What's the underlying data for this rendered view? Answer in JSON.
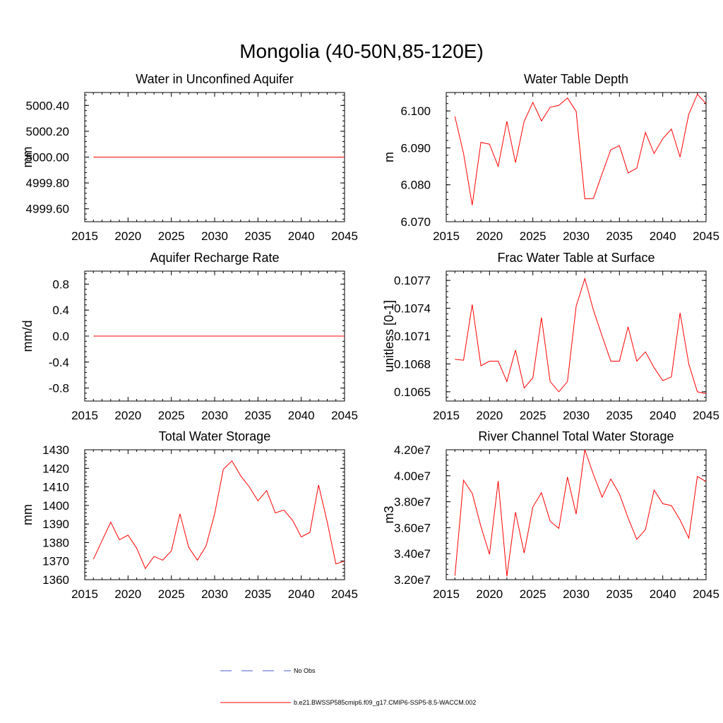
{
  "figure": {
    "title": "Mongolia (40-50N,85-120E)"
  },
  "legend": {
    "items": [
      {
        "label": "No Obs",
        "color": "#4a5bd1",
        "style": "dashed"
      },
      {
        "label": "b.e21.BWSSP585cmip6.f09_g17.CMIP6-SSP5-8.5-WACCM.002",
        "color": "#ff0000",
        "style": "solid"
      }
    ]
  },
  "chart_data": [
    {
      "type": "line",
      "title": "Water in Unconfined Aquifer",
      "ylabel": "mm",
      "xlim": [
        2015,
        2045
      ],
      "ylim": [
        4999.5,
        5000.5
      ],
      "xticks": [
        "2015",
        "2020",
        "2025",
        "2030",
        "2035",
        "2040",
        "2045"
      ],
      "yticks": [
        "4999.60",
        "4999.80",
        "5000.00",
        "5000.20",
        "5000.40"
      ],
      "series": [
        {
          "x": [
            2016,
            2045
          ],
          "values": [
            5000.0,
            5000.0
          ]
        }
      ]
    },
    {
      "type": "line",
      "title": "Water Table Depth",
      "ylabel": "m",
      "xlim": [
        2015,
        2045
      ],
      "ylim": [
        6.07,
        6.105
      ],
      "xticks": [
        "2015",
        "2020",
        "2025",
        "2030",
        "2035",
        "2040",
        "2045"
      ],
      "yticks": [
        "6.070",
        "6.080",
        "6.090",
        "6.100"
      ],
      "series": [
        {
          "x": [
            2016,
            2017,
            2018,
            2019,
            2020,
            2021,
            2022,
            2023,
            2024,
            2025,
            2026,
            2027,
            2028,
            2029,
            2030,
            2031,
            2032,
            2033,
            2034,
            2035,
            2036,
            2037,
            2038,
            2039,
            2040,
            2041,
            2042,
            2043,
            2044,
            2045
          ],
          "values": [
            6.0985,
            6.0885,
            6.0745,
            6.0915,
            6.091,
            6.085,
            6.0972,
            6.086,
            6.0972,
            6.1023,
            6.0973,
            6.101,
            6.1015,
            6.1035,
            6.0999,
            6.0762,
            6.0763,
            6.083,
            6.0895,
            6.0906,
            6.0832,
            6.0845,
            6.0942,
            6.0885,
            6.0925,
            6.0951,
            6.0875,
            6.0991,
            6.1045,
            6.102
          ]
        }
      ]
    },
    {
      "type": "line",
      "title": "Aquifer Recharge Rate",
      "ylabel": "mm/d",
      "xlim": [
        2015,
        2045
      ],
      "ylim": [
        -1.0,
        1.0
      ],
      "xticks": [
        "2015",
        "2020",
        "2025",
        "2030",
        "2035",
        "2040",
        "2045"
      ],
      "yticks": [
        "-0.8",
        "-0.4",
        "0.0",
        "0.4",
        "0.8"
      ],
      "series": [
        {
          "x": [
            2016,
            2045
          ],
          "values": [
            0.0,
            0.0
          ]
        }
      ]
    },
    {
      "type": "line",
      "title": "Frac Water Table at Surface",
      "ylabel": "unitless [0-1]",
      "xlim": [
        2015,
        2045
      ],
      "ylim": [
        0.1064,
        0.1078
      ],
      "xticks": [
        "2015",
        "2020",
        "2025",
        "2030",
        "2035",
        "2040",
        "2045"
      ],
      "yticks": [
        "0.1065",
        "0.1068",
        "0.1071",
        "0.1074",
        "0.1077"
      ],
      "series": [
        {
          "x": [
            2016,
            2017,
            2018,
            2019,
            2020,
            2021,
            2022,
            2023,
            2024,
            2025,
            2026,
            2027,
            2028,
            2029,
            2030,
            2031,
            2032,
            2033,
            2034,
            2035,
            2036,
            2037,
            2038,
            2039,
            2040,
            2041,
            2042,
            2043,
            2044,
            2045
          ],
          "values": [
            0.10685,
            0.10684,
            0.10744,
            0.10678,
            0.10683,
            0.10683,
            0.10661,
            0.10695,
            0.10654,
            0.10665,
            0.1073,
            0.10661,
            0.1065,
            0.10661,
            0.10742,
            0.10772,
            0.10738,
            0.1071,
            0.10683,
            0.10683,
            0.1072,
            0.10683,
            0.10693,
            0.10676,
            0.10662,
            0.10666,
            0.10735,
            0.1068,
            0.1065,
            0.10648
          ]
        }
      ]
    },
    {
      "type": "line",
      "title": "Total Water Storage",
      "ylabel": "mm",
      "xlim": [
        2015,
        2045
      ],
      "ylim": [
        1360,
        1430
      ],
      "xticks": [
        "2015",
        "2020",
        "2025",
        "2030",
        "2035",
        "2040",
        "2045"
      ],
      "yticks": [
        "1360",
        "1370",
        "1380",
        "1390",
        "1400",
        "1410",
        "1420",
        "1430"
      ],
      "series": [
        {
          "x": [
            2016,
            2017,
            2018,
            2019,
            2020,
            2021,
            2022,
            2023,
            2024,
            2025,
            2026,
            2027,
            2028,
            2029,
            2030,
            2031,
            2032,
            2033,
            2034,
            2035,
            2036,
            2037,
            2038,
            2039,
            2040,
            2041,
            2042,
            2043,
            2044,
            2045
          ],
          "values": [
            1371,
            1381,
            1391,
            1381.5,
            1384,
            1377,
            1366,
            1372.5,
            1370.5,
            1375.5,
            1395.5,
            1377.5,
            1370.5,
            1378,
            1395.5,
            1419.5,
            1424,
            1416,
            1410,
            1402.5,
            1408,
            1396,
            1397.5,
            1392,
            1383,
            1385.5,
            1411,
            1391,
            1368.5,
            1370
          ]
        }
      ]
    },
    {
      "type": "line",
      "title": "River Channel Total Water Storage",
      "ylabel": "m3",
      "xlim": [
        2015,
        2045
      ],
      "ylim": [
        32000000,
        42000000
      ],
      "xticks": [
        "2015",
        "2020",
        "2025",
        "2030",
        "2035",
        "2040",
        "2045"
      ],
      "yticks": [
        "3.20e7",
        "3.40e7",
        "3.60e7",
        "3.80e7",
        "4.00e7",
        "4.20e7"
      ],
      "series": [
        {
          "x": [
            2016,
            2017,
            2018,
            2019,
            2020,
            2021,
            2022,
            2023,
            2024,
            2025,
            2026,
            2027,
            2028,
            2029,
            2030,
            2031,
            2032,
            2033,
            2034,
            2035,
            2036,
            2037,
            2038,
            2039,
            2040,
            2041,
            2042,
            2043,
            2044,
            2045
          ],
          "values": [
            32300000,
            39650000,
            38650000,
            36100000,
            33950000,
            39600000,
            32250000,
            37200000,
            34050000,
            37600000,
            38700000,
            36500000,
            35950000,
            39900000,
            37050000,
            42000000,
            40100000,
            38350000,
            39750000,
            38600000,
            36750000,
            35100000,
            35850000,
            38900000,
            37850000,
            37700000,
            36600000,
            35200000,
            39950000,
            39550000
          ]
        }
      ]
    }
  ]
}
